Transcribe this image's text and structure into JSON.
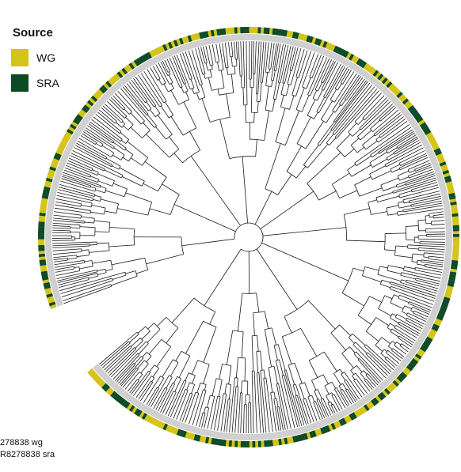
{
  "legend": {
    "title": "Source",
    "items": [
      {
        "label": "WG",
        "color": "#d4c319"
      },
      {
        "label": "SRA",
        "color": "#0c4a25"
      }
    ]
  },
  "colors": {
    "branch": "#1a1a1a",
    "inner_ring": "#d0d0d0",
    "wg": "#d4c319",
    "sra": "#0c4a25"
  },
  "tip_labels": [
    "278838 wg",
    "R8278838 sra"
  ]
}
